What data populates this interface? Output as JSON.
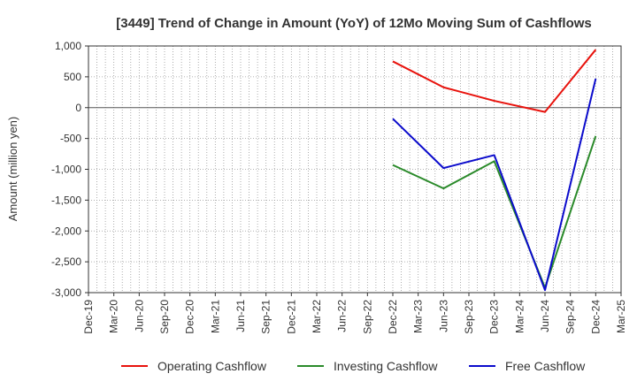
{
  "chart_data": {
    "type": "line",
    "title": "[3449]  Trend of Change in Amount (YoY) of 12Mo Moving Sum of Cashflows",
    "ylabel": "Amount (million yen)",
    "xlabel": "",
    "ylim": [
      -3000,
      1000
    ],
    "yticks": [
      1000,
      500,
      0,
      -500,
      -1000,
      -1500,
      -2000,
      -2500,
      -3000
    ],
    "ytick_labels": [
      "1,000",
      "500",
      "0",
      "-500",
      "-1,000",
      "-1,500",
      "-2,000",
      "-2,500",
      "-3,000"
    ],
    "categories": [
      "Dec-19",
      "Mar-20",
      "Jun-20",
      "Sep-20",
      "Dec-20",
      "Mar-21",
      "Jun-21",
      "Sep-21",
      "Dec-21",
      "Mar-22",
      "Jun-22",
      "Sep-22",
      "Dec-22",
      "Mar-23",
      "Jun-23",
      "Sep-23",
      "Dec-23",
      "Mar-24",
      "Jun-24",
      "Sep-24",
      "Dec-24",
      "Mar-25"
    ],
    "grid": true,
    "legend_position": "bottom",
    "series": [
      {
        "name": "Operating Cashflow",
        "color": "#e8120c",
        "points": [
          {
            "x": "Dec-22",
            "y": 750
          },
          {
            "x": "Jun-23",
            "y": 330
          },
          {
            "x": "Dec-23",
            "y": 110
          },
          {
            "x": "Jun-24",
            "y": -70
          },
          {
            "x": "Dec-24",
            "y": 940
          }
        ]
      },
      {
        "name": "Investing Cashflow",
        "color": "#2a8a2a",
        "points": [
          {
            "x": "Dec-22",
            "y": -930
          },
          {
            "x": "Jun-23",
            "y": -1310
          },
          {
            "x": "Dec-23",
            "y": -870
          },
          {
            "x": "Jun-24",
            "y": -2920
          },
          {
            "x": "Dec-24",
            "y": -460
          }
        ]
      },
      {
        "name": "Free Cashflow",
        "color": "#0b0bcc",
        "points": [
          {
            "x": "Dec-22",
            "y": -180
          },
          {
            "x": "Jun-23",
            "y": -980
          },
          {
            "x": "Dec-23",
            "y": -770
          },
          {
            "x": "Jun-24",
            "y": -2960
          },
          {
            "x": "Dec-24",
            "y": 470
          }
        ]
      }
    ]
  }
}
